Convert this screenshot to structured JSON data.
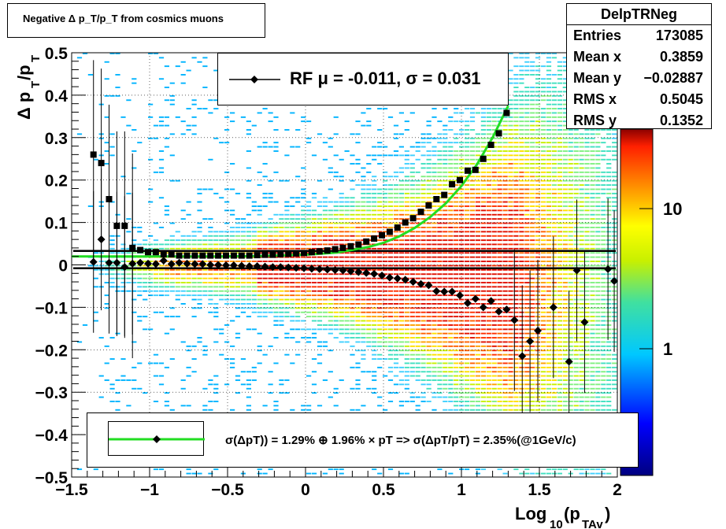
{
  "title": "Negative Δ p_T/p_T from cosmics muons",
  "stats": {
    "name": "DelpTRNeg",
    "rows": [
      {
        "label": "Entries",
        "value": "173085"
      },
      {
        "label": "Mean x",
        "value": "0.3859"
      },
      {
        "label": "Mean y",
        "value": "−0.02887"
      },
      {
        "label": "RMS x",
        "value": "0.5045"
      },
      {
        "label": "RMS y",
        "value": "0.1352"
      }
    ]
  },
  "legend_top": {
    "label": "RF μ = -0.011, σ =   0.031"
  },
  "legend_bottom": {
    "label": "σ(ΔpT)) =  1.29% ⊕  1.96% × pT => σ(ΔpT/pT) =  2.35%(@1GeV/c)"
  },
  "colors": {
    "fit_line": "#22dd22",
    "markers": "#000000",
    "palette_low": "#000080",
    "palette_high": "#8b0000"
  },
  "chart_data": {
    "type": "heatmap",
    "xlabel": "Log_10(p_TAv)",
    "ylabel": "Δ p_T/p_T",
    "xlim": [
      -1.5,
      2
    ],
    "ylim": [
      -0.5,
      0.5
    ],
    "x_ticks": [
      "−1.5",
      "−1",
      "−0.5",
      "0",
      "0.5",
      "1",
      "1.5",
      "2"
    ],
    "y_ticks": [
      "−0.5",
      "−0.4",
      "−0.3",
      "−0.2",
      "−0.1",
      "0",
      "0.1",
      "0.2",
      "0.3",
      "0.4",
      "0.5"
    ],
    "grid": true,
    "z_scale": "log",
    "colorbar_ticks": [
      "10",
      "1"
    ],
    "horizontal_lines": [
      0.033,
      -0.008
    ],
    "sigma_points": [
      {
        "x": -1.36,
        "y": 0.26
      },
      {
        "x": -1.31,
        "y": 0.24
      },
      {
        "x": -1.26,
        "y": 0.155
      },
      {
        "x": -1.21,
        "y": 0.092
      },
      {
        "x": -1.16,
        "y": 0.092
      },
      {
        "x": -1.11,
        "y": 0.04
      },
      {
        "x": -1.06,
        "y": 0.035
      },
      {
        "x": -1.01,
        "y": 0.03
      },
      {
        "x": -0.96,
        "y": 0.03
      },
      {
        "x": -0.91,
        "y": 0.025
      },
      {
        "x": -0.86,
        "y": 0.025
      },
      {
        "x": -0.81,
        "y": 0.022
      },
      {
        "x": -0.76,
        "y": 0.022
      },
      {
        "x": -0.71,
        "y": 0.022
      },
      {
        "x": -0.66,
        "y": 0.022
      },
      {
        "x": -0.61,
        "y": 0.022
      },
      {
        "x": -0.56,
        "y": 0.022
      },
      {
        "x": -0.51,
        "y": 0.022
      },
      {
        "x": -0.46,
        "y": 0.022
      },
      {
        "x": -0.41,
        "y": 0.022
      },
      {
        "x": -0.36,
        "y": 0.022
      },
      {
        "x": -0.31,
        "y": 0.023
      },
      {
        "x": -0.26,
        "y": 0.024
      },
      {
        "x": -0.21,
        "y": 0.024
      },
      {
        "x": -0.16,
        "y": 0.025
      },
      {
        "x": -0.11,
        "y": 0.026
      },
      {
        "x": -0.06,
        "y": 0.027
      },
      {
        "x": -0.01,
        "y": 0.028
      },
      {
        "x": 0.04,
        "y": 0.03
      },
      {
        "x": 0.09,
        "y": 0.032
      },
      {
        "x": 0.14,
        "y": 0.034
      },
      {
        "x": 0.19,
        "y": 0.037
      },
      {
        "x": 0.24,
        "y": 0.04
      },
      {
        "x": 0.29,
        "y": 0.044
      },
      {
        "x": 0.34,
        "y": 0.048
      },
      {
        "x": 0.39,
        "y": 0.055
      },
      {
        "x": 0.44,
        "y": 0.062
      },
      {
        "x": 0.49,
        "y": 0.07
      },
      {
        "x": 0.54,
        "y": 0.078
      },
      {
        "x": 0.59,
        "y": 0.088
      },
      {
        "x": 0.64,
        "y": 0.1
      },
      {
        "x": 0.69,
        "y": 0.11
      },
      {
        "x": 0.74,
        "y": 0.125
      },
      {
        "x": 0.79,
        "y": 0.14
      },
      {
        "x": 0.84,
        "y": 0.155
      },
      {
        "x": 0.89,
        "y": 0.165
      },
      {
        "x": 0.94,
        "y": 0.19
      },
      {
        "x": 0.99,
        "y": 0.2
      },
      {
        "x": 1.04,
        "y": 0.222
      },
      {
        "x": 1.09,
        "y": 0.224
      },
      {
        "x": 1.14,
        "y": 0.25
      },
      {
        "x": 1.19,
        "y": 0.283
      },
      {
        "x": 1.24,
        "y": 0.31
      },
      {
        "x": 1.29,
        "y": 0.358
      }
    ],
    "mean_points": [
      {
        "x": -1.36,
        "y": 0.007
      },
      {
        "x": -1.31,
        "y": 0.06
      },
      {
        "x": -1.26,
        "y": 0.005
      },
      {
        "x": -1.21,
        "y": 0.005
      },
      {
        "x": -1.16,
        "y": -0.005
      },
      {
        "x": -1.11,
        "y": 0.003
      },
      {
        "x": -1.06,
        "y": 0.005
      },
      {
        "x": -1.01,
        "y": 0.003
      },
      {
        "x": -0.96,
        "y": 0.002
      },
      {
        "x": -0.91,
        "y": 0.01
      },
      {
        "x": -0.86,
        "y": 0.002
      },
      {
        "x": -0.81,
        "y": 0.005
      },
      {
        "x": -0.76,
        "y": 0.003
      },
      {
        "x": -0.71,
        "y": 0.002
      },
      {
        "x": -0.66,
        "y": 0.002
      },
      {
        "x": -0.61,
        "y": 0.0
      },
      {
        "x": -0.56,
        "y": 0.0
      },
      {
        "x": -0.51,
        "y": -0.001
      },
      {
        "x": -0.46,
        "y": -0.001
      },
      {
        "x": -0.41,
        "y": -0.002
      },
      {
        "x": -0.36,
        "y": -0.003
      },
      {
        "x": -0.31,
        "y": -0.003
      },
      {
        "x": -0.26,
        "y": -0.004
      },
      {
        "x": -0.21,
        "y": -0.005
      },
      {
        "x": -0.16,
        "y": -0.005
      },
      {
        "x": -0.11,
        "y": -0.006
      },
      {
        "x": -0.06,
        "y": -0.007
      },
      {
        "x": -0.01,
        "y": -0.008
      },
      {
        "x": 0.04,
        "y": -0.009
      },
      {
        "x": 0.09,
        "y": -0.01
      },
      {
        "x": 0.14,
        "y": -0.011
      },
      {
        "x": 0.19,
        "y": -0.012
      },
      {
        "x": 0.24,
        "y": -0.013
      },
      {
        "x": 0.29,
        "y": -0.015
      },
      {
        "x": 0.34,
        "y": -0.017
      },
      {
        "x": 0.39,
        "y": -0.019
      },
      {
        "x": 0.44,
        "y": -0.021
      },
      {
        "x": 0.49,
        "y": -0.025
      },
      {
        "x": 0.54,
        "y": -0.03
      },
      {
        "x": 0.59,
        "y": -0.032
      },
      {
        "x": 0.64,
        "y": -0.035
      },
      {
        "x": 0.69,
        "y": -0.04
      },
      {
        "x": 0.74,
        "y": -0.045
      },
      {
        "x": 0.79,
        "y": -0.048
      },
      {
        "x": 0.84,
        "y": -0.062
      },
      {
        "x": 0.89,
        "y": -0.063
      },
      {
        "x": 0.94,
        "y": -0.063
      },
      {
        "x": 0.99,
        "y": -0.072
      },
      {
        "x": 1.04,
        "y": -0.09
      },
      {
        "x": 1.09,
        "y": -0.08
      },
      {
        "x": 1.14,
        "y": -0.1
      },
      {
        "x": 1.19,
        "y": -0.085
      },
      {
        "x": 1.24,
        "y": -0.11
      },
      {
        "x": 1.29,
        "y": -0.105
      },
      {
        "x": 1.34,
        "y": -0.13
      },
      {
        "x": 1.39,
        "y": -0.215
      },
      {
        "x": 1.44,
        "y": -0.18
      },
      {
        "x": 1.49,
        "y": -0.155
      },
      {
        "x": 1.59,
        "y": -0.1
      },
      {
        "x": 1.69,
        "y": -0.228
      },
      {
        "x": 1.74,
        "y": -0.013
      },
      {
        "x": 1.79,
        "y": -0.135
      },
      {
        "x": 1.94,
        "y": -0.01
      },
      {
        "x": 1.98,
        "y": -0.038
      }
    ],
    "fit_curve": {
      "x": [
        -1.5,
        -1.2,
        -0.9,
        -0.6,
        -0.3,
        0,
        0.2,
        0.4,
        0.5,
        0.6,
        0.7,
        0.8,
        0.9,
        1.0,
        1.1,
        1.2,
        1.3
      ],
      "y": [
        0.02,
        0.02,
        0.02,
        0.02,
        0.021,
        0.024,
        0.029,
        0.042,
        0.052,
        0.067,
        0.087,
        0.113,
        0.145,
        0.186,
        0.237,
        0.3,
        0.375
      ]
    }
  }
}
